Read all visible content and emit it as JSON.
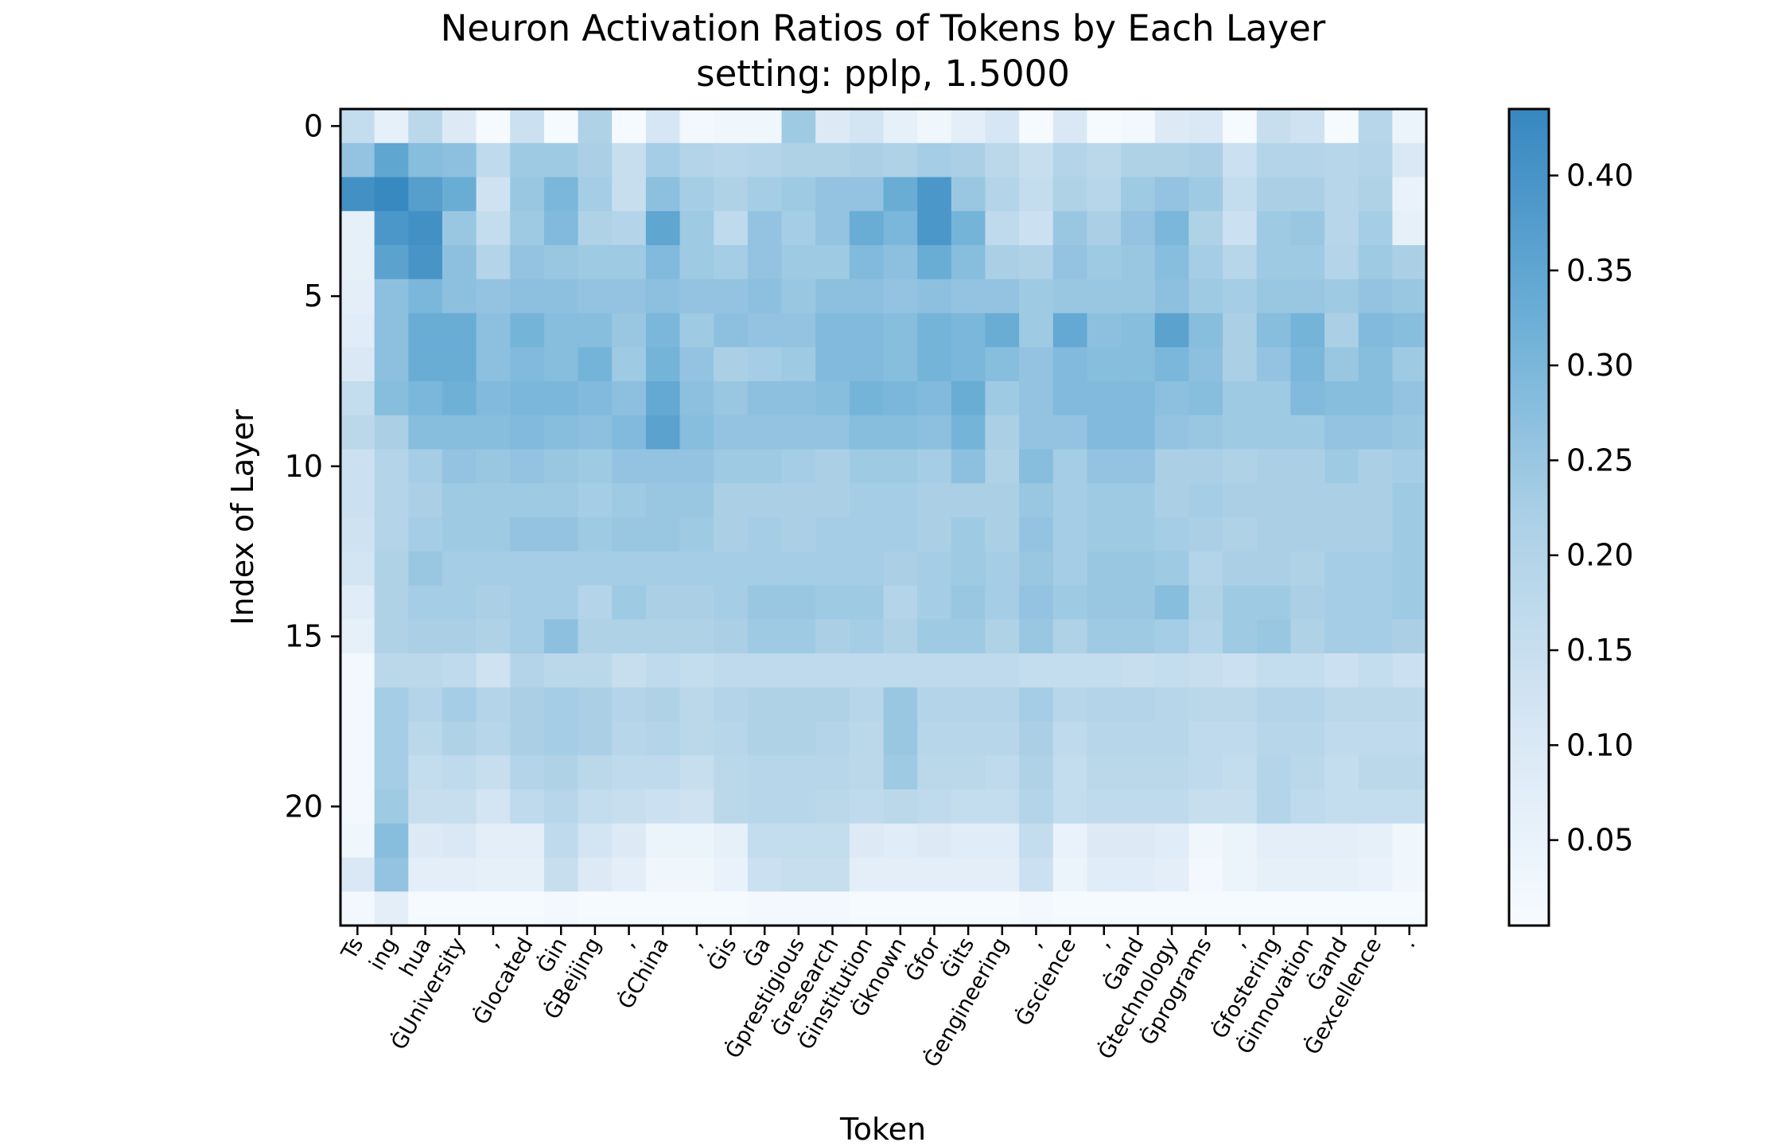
{
  "chart_data": {
    "type": "heatmap",
    "title": "Neuron Activation Ratios of Tokens by Each Layer",
    "subtitle": "setting: pplp, 1.5000",
    "xlabel": "Token",
    "ylabel": "Index of Layer",
    "x_categories": [
      "Ts",
      "ing",
      "hua",
      "ĠUniversity",
      ",",
      "Ġlocated",
      "Ġin",
      "ĠBeijing",
      ",",
      "ĠChina",
      ",",
      "Ġis",
      "Ġa",
      "Ġprestigious",
      "Ġresearch",
      "Ġinstitution",
      "Ġknown",
      "Ġfor",
      "Ġits",
      "Ġengineering",
      ",",
      "Ġscience",
      ",",
      "Ġand",
      "Ġtechnology",
      "Ġprograms",
      ",",
      "Ġfostering",
      "Ġinnovation",
      "Ġand",
      "Ġexcellence",
      "."
    ],
    "y_ticks": [
      0,
      5,
      10,
      15,
      20
    ],
    "num_layers": 24,
    "colorbar": {
      "min": 0.005,
      "max": 0.435,
      "ticks": [
        0.05,
        0.1,
        0.15,
        0.2,
        0.25,
        0.3,
        0.35,
        0.4
      ],
      "tick_labels": [
        "0.05",
        "0.10",
        "0.15",
        "0.20",
        "0.25",
        "0.30",
        "0.35",
        "0.40"
      ],
      "colors": [
        "#f7fbff",
        "#d6e6f4",
        "#abd0e6",
        "#6aaed6",
        "#3787c0"
      ]
    },
    "values": [
      [
        0.16,
        0.06,
        0.18,
        0.09,
        0.01,
        0.14,
        0.01,
        0.21,
        0.01,
        0.11,
        0.02,
        0.03,
        0.03,
        0.24,
        0.09,
        0.12,
        0.06,
        0.03,
        0.07,
        0.11,
        0.01,
        0.1,
        0.01,
        0.02,
        0.09,
        0.1,
        0.01,
        0.15,
        0.13,
        0.01,
        0.19,
        0.04
      ],
      [
        0.26,
        0.35,
        0.28,
        0.27,
        0.17,
        0.24,
        0.24,
        0.22,
        0.15,
        0.23,
        0.2,
        0.19,
        0.2,
        0.21,
        0.21,
        0.22,
        0.21,
        0.23,
        0.22,
        0.18,
        0.15,
        0.2,
        0.18,
        0.21,
        0.21,
        0.22,
        0.14,
        0.2,
        0.2,
        0.19,
        0.2,
        0.1
      ],
      [
        0.41,
        0.43,
        0.37,
        0.33,
        0.13,
        0.25,
        0.3,
        0.23,
        0.15,
        0.27,
        0.23,
        0.21,
        0.23,
        0.24,
        0.26,
        0.26,
        0.33,
        0.39,
        0.25,
        0.2,
        0.16,
        0.21,
        0.19,
        0.24,
        0.26,
        0.24,
        0.16,
        0.22,
        0.22,
        0.19,
        0.21,
        0.05
      ],
      [
        0.06,
        0.39,
        0.41,
        0.25,
        0.16,
        0.24,
        0.29,
        0.21,
        0.2,
        0.35,
        0.24,
        0.17,
        0.26,
        0.23,
        0.26,
        0.33,
        0.3,
        0.39,
        0.31,
        0.17,
        0.14,
        0.25,
        0.22,
        0.26,
        0.3,
        0.21,
        0.14,
        0.24,
        0.25,
        0.19,
        0.23,
        0.06
      ],
      [
        0.06,
        0.36,
        0.4,
        0.27,
        0.2,
        0.26,
        0.25,
        0.24,
        0.24,
        0.29,
        0.24,
        0.23,
        0.26,
        0.24,
        0.24,
        0.29,
        0.27,
        0.33,
        0.28,
        0.22,
        0.21,
        0.26,
        0.24,
        0.25,
        0.28,
        0.23,
        0.19,
        0.24,
        0.24,
        0.2,
        0.24,
        0.22
      ],
      [
        0.07,
        0.27,
        0.3,
        0.27,
        0.26,
        0.27,
        0.27,
        0.26,
        0.26,
        0.27,
        0.26,
        0.26,
        0.27,
        0.25,
        0.27,
        0.27,
        0.26,
        0.27,
        0.26,
        0.26,
        0.24,
        0.25,
        0.25,
        0.25,
        0.27,
        0.24,
        0.23,
        0.25,
        0.25,
        0.24,
        0.26,
        0.25
      ],
      [
        0.08,
        0.27,
        0.33,
        0.33,
        0.27,
        0.31,
        0.28,
        0.28,
        0.25,
        0.3,
        0.24,
        0.27,
        0.26,
        0.26,
        0.29,
        0.29,
        0.28,
        0.31,
        0.3,
        0.33,
        0.24,
        0.34,
        0.27,
        0.28,
        0.36,
        0.28,
        0.22,
        0.28,
        0.31,
        0.22,
        0.29,
        0.28
      ],
      [
        0.1,
        0.27,
        0.33,
        0.33,
        0.27,
        0.29,
        0.28,
        0.31,
        0.24,
        0.31,
        0.26,
        0.22,
        0.23,
        0.24,
        0.29,
        0.29,
        0.28,
        0.31,
        0.3,
        0.28,
        0.26,
        0.29,
        0.28,
        0.28,
        0.3,
        0.27,
        0.22,
        0.26,
        0.3,
        0.25,
        0.28,
        0.24
      ],
      [
        0.16,
        0.28,
        0.3,
        0.32,
        0.29,
        0.3,
        0.3,
        0.29,
        0.27,
        0.34,
        0.27,
        0.25,
        0.27,
        0.27,
        0.28,
        0.31,
        0.3,
        0.29,
        0.33,
        0.24,
        0.26,
        0.29,
        0.29,
        0.29,
        0.27,
        0.28,
        0.24,
        0.24,
        0.29,
        0.28,
        0.28,
        0.26
      ],
      [
        0.18,
        0.22,
        0.28,
        0.28,
        0.28,
        0.29,
        0.28,
        0.27,
        0.29,
        0.36,
        0.28,
        0.26,
        0.26,
        0.26,
        0.26,
        0.28,
        0.28,
        0.27,
        0.31,
        0.22,
        0.26,
        0.26,
        0.29,
        0.29,
        0.26,
        0.25,
        0.24,
        0.24,
        0.24,
        0.26,
        0.26,
        0.25
      ],
      [
        0.14,
        0.2,
        0.23,
        0.26,
        0.25,
        0.26,
        0.25,
        0.24,
        0.26,
        0.26,
        0.26,
        0.24,
        0.24,
        0.23,
        0.22,
        0.24,
        0.24,
        0.23,
        0.27,
        0.21,
        0.28,
        0.23,
        0.26,
        0.26,
        0.22,
        0.22,
        0.21,
        0.22,
        0.22,
        0.24,
        0.22,
        0.23
      ],
      [
        0.14,
        0.2,
        0.22,
        0.24,
        0.24,
        0.24,
        0.24,
        0.23,
        0.24,
        0.25,
        0.25,
        0.22,
        0.22,
        0.22,
        0.22,
        0.23,
        0.23,
        0.22,
        0.22,
        0.22,
        0.25,
        0.23,
        0.24,
        0.24,
        0.22,
        0.23,
        0.22,
        0.22,
        0.22,
        0.22,
        0.22,
        0.24
      ],
      [
        0.13,
        0.2,
        0.23,
        0.24,
        0.24,
        0.26,
        0.26,
        0.24,
        0.25,
        0.25,
        0.24,
        0.22,
        0.23,
        0.22,
        0.23,
        0.23,
        0.23,
        0.22,
        0.24,
        0.22,
        0.26,
        0.23,
        0.24,
        0.24,
        0.23,
        0.22,
        0.21,
        0.22,
        0.22,
        0.22,
        0.22,
        0.24
      ],
      [
        0.12,
        0.21,
        0.25,
        0.23,
        0.23,
        0.23,
        0.23,
        0.23,
        0.23,
        0.23,
        0.23,
        0.23,
        0.23,
        0.23,
        0.23,
        0.23,
        0.22,
        0.23,
        0.24,
        0.23,
        0.25,
        0.23,
        0.25,
        0.25,
        0.24,
        0.2,
        0.22,
        0.22,
        0.21,
        0.23,
        0.23,
        0.24
      ],
      [
        0.08,
        0.21,
        0.23,
        0.23,
        0.22,
        0.23,
        0.23,
        0.2,
        0.24,
        0.22,
        0.22,
        0.23,
        0.25,
        0.25,
        0.24,
        0.24,
        0.2,
        0.23,
        0.25,
        0.23,
        0.26,
        0.24,
        0.25,
        0.25,
        0.28,
        0.21,
        0.24,
        0.24,
        0.22,
        0.23,
        0.23,
        0.24
      ],
      [
        0.06,
        0.21,
        0.22,
        0.22,
        0.21,
        0.23,
        0.27,
        0.21,
        0.21,
        0.21,
        0.21,
        0.22,
        0.24,
        0.24,
        0.22,
        0.23,
        0.21,
        0.24,
        0.24,
        0.21,
        0.25,
        0.21,
        0.24,
        0.24,
        0.23,
        0.2,
        0.24,
        0.25,
        0.21,
        0.23,
        0.23,
        0.22
      ],
      [
        0.02,
        0.18,
        0.18,
        0.17,
        0.13,
        0.2,
        0.18,
        0.18,
        0.15,
        0.17,
        0.16,
        0.17,
        0.17,
        0.17,
        0.17,
        0.17,
        0.17,
        0.17,
        0.17,
        0.17,
        0.16,
        0.16,
        0.16,
        0.15,
        0.16,
        0.15,
        0.14,
        0.16,
        0.16,
        0.14,
        0.16,
        0.14
      ],
      [
        0.02,
        0.23,
        0.2,
        0.23,
        0.2,
        0.22,
        0.23,
        0.22,
        0.2,
        0.21,
        0.18,
        0.2,
        0.21,
        0.21,
        0.21,
        0.19,
        0.25,
        0.2,
        0.2,
        0.2,
        0.23,
        0.19,
        0.2,
        0.2,
        0.19,
        0.18,
        0.18,
        0.2,
        0.2,
        0.18,
        0.18,
        0.18
      ],
      [
        0.02,
        0.23,
        0.18,
        0.21,
        0.19,
        0.22,
        0.23,
        0.22,
        0.19,
        0.2,
        0.18,
        0.19,
        0.21,
        0.21,
        0.2,
        0.18,
        0.25,
        0.19,
        0.19,
        0.19,
        0.22,
        0.17,
        0.19,
        0.19,
        0.19,
        0.17,
        0.17,
        0.19,
        0.19,
        0.17,
        0.17,
        0.17
      ],
      [
        0.02,
        0.23,
        0.16,
        0.17,
        0.15,
        0.2,
        0.21,
        0.18,
        0.17,
        0.17,
        0.15,
        0.18,
        0.19,
        0.19,
        0.19,
        0.18,
        0.24,
        0.18,
        0.18,
        0.17,
        0.21,
        0.16,
        0.18,
        0.18,
        0.18,
        0.17,
        0.16,
        0.2,
        0.18,
        0.16,
        0.18,
        0.18
      ],
      [
        0.02,
        0.24,
        0.15,
        0.15,
        0.12,
        0.17,
        0.19,
        0.16,
        0.15,
        0.14,
        0.13,
        0.18,
        0.19,
        0.19,
        0.18,
        0.17,
        0.18,
        0.17,
        0.16,
        0.16,
        0.2,
        0.16,
        0.17,
        0.17,
        0.17,
        0.15,
        0.15,
        0.2,
        0.17,
        0.16,
        0.16,
        0.16
      ],
      [
        0.03,
        0.28,
        0.09,
        0.1,
        0.07,
        0.07,
        0.17,
        0.12,
        0.09,
        0.04,
        0.04,
        0.06,
        0.16,
        0.16,
        0.16,
        0.09,
        0.08,
        0.09,
        0.08,
        0.08,
        0.16,
        0.05,
        0.09,
        0.09,
        0.08,
        0.03,
        0.04,
        0.07,
        0.07,
        0.07,
        0.06,
        0.03
      ],
      [
        0.1,
        0.26,
        0.07,
        0.07,
        0.06,
        0.06,
        0.15,
        0.09,
        0.07,
        0.03,
        0.03,
        0.05,
        0.14,
        0.15,
        0.15,
        0.07,
        0.07,
        0.07,
        0.07,
        0.07,
        0.14,
        0.04,
        0.08,
        0.08,
        0.07,
        0.02,
        0.04,
        0.06,
        0.06,
        0.06,
        0.05,
        0.03
      ],
      [
        0.02,
        0.07,
        0.01,
        0.01,
        0.01,
        0.01,
        0.02,
        0.01,
        0.01,
        0.01,
        0.01,
        0.01,
        0.02,
        0.02,
        0.02,
        0.01,
        0.01,
        0.01,
        0.01,
        0.01,
        0.02,
        0.01,
        0.01,
        0.01,
        0.01,
        0.01,
        0.01,
        0.01,
        0.01,
        0.01,
        0.01,
        0.01
      ]
    ]
  }
}
